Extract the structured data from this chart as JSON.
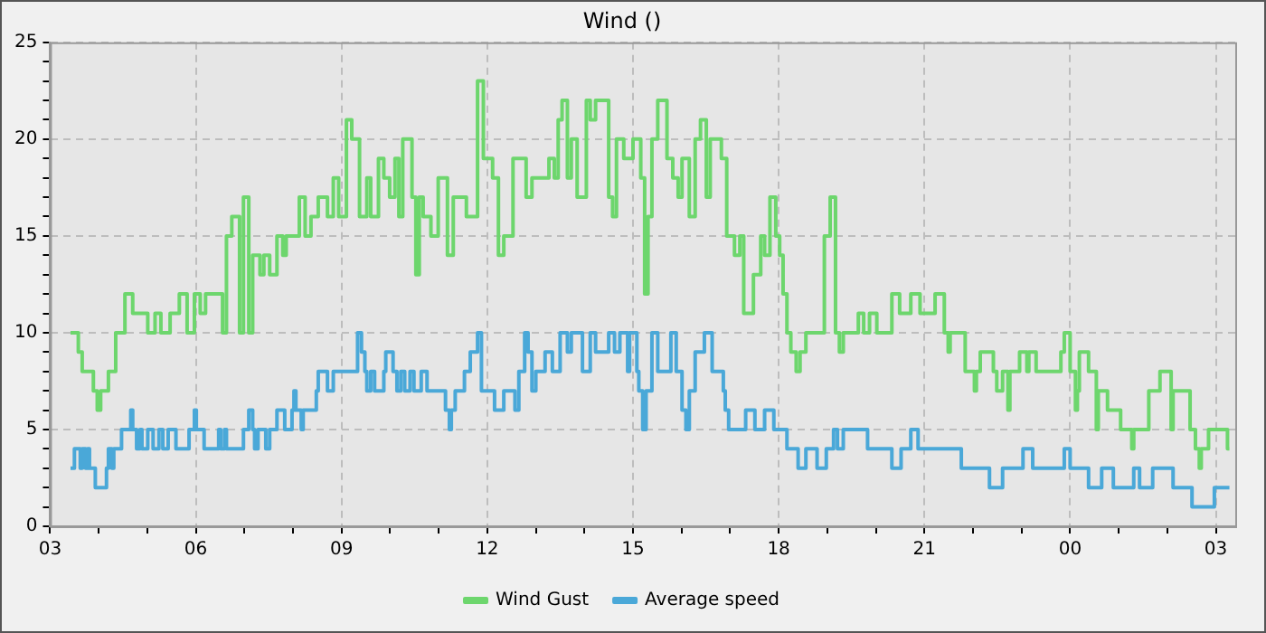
{
  "chart_data": {
    "type": "step",
    "title": "Wind ()",
    "xlim": [
      3,
      27.4
    ],
    "ylim": [
      0,
      25
    ],
    "xticks": [
      {
        "value": 3,
        "label": "03"
      },
      {
        "value": 4,
        "label": null
      },
      {
        "value": 5,
        "label": null
      },
      {
        "value": 6,
        "label": "06"
      },
      {
        "value": 7,
        "label": null
      },
      {
        "value": 8,
        "label": null
      },
      {
        "value": 9,
        "label": "09"
      },
      {
        "value": 10,
        "label": null
      },
      {
        "value": 11,
        "label": null
      },
      {
        "value": 12,
        "label": "12"
      },
      {
        "value": 13,
        "label": null
      },
      {
        "value": 14,
        "label": null
      },
      {
        "value": 15,
        "label": "15"
      },
      {
        "value": 16,
        "label": null
      },
      {
        "value": 17,
        "label": null
      },
      {
        "value": 18,
        "label": "18"
      },
      {
        "value": 19,
        "label": null
      },
      {
        "value": 20,
        "label": null
      },
      {
        "value": 21,
        "label": "21"
      },
      {
        "value": 22,
        "label": null
      },
      {
        "value": 23,
        "label": null
      },
      {
        "value": 24,
        "label": "00"
      },
      {
        "value": 25,
        "label": null
      },
      {
        "value": 26,
        "label": null
      },
      {
        "value": 27,
        "label": "03"
      }
    ],
    "yticks": [
      0,
      {
        "value": 1,
        "label": null
      },
      {
        "value": 2,
        "label": null
      },
      {
        "value": 3,
        "label": null
      },
      {
        "value": 4,
        "label": null
      },
      5,
      {
        "value": 6,
        "label": null
      },
      {
        "value": 7,
        "label": null
      },
      {
        "value": 8,
        "label": null
      },
      {
        "value": 9,
        "label": null
      },
      10,
      {
        "value": 11,
        "label": null
      },
      {
        "value": 12,
        "label": null
      },
      {
        "value": 13,
        "label": null
      },
      {
        "value": 14,
        "label": null
      },
      15,
      {
        "value": 16,
        "label": null
      },
      {
        "value": 17,
        "label": null
      },
      {
        "value": 18,
        "label": null
      },
      {
        "value": 19,
        "label": null
      },
      20,
      {
        "value": 21,
        "label": null
      },
      {
        "value": 22,
        "label": null
      },
      {
        "value": 23,
        "label": null
      },
      {
        "value": 24,
        "label": null
      },
      25
    ],
    "grid": true,
    "legend": "bottom",
    "line_style": "solid",
    "marker": "none",
    "series": [
      {
        "name": "Wind Gust",
        "color": "#6dd66d",
        "x": [
          3.42,
          3.58,
          3.66,
          3.89,
          3.97,
          4.04,
          4.2,
          4.35,
          4.54,
          4.7,
          5.01,
          5.16,
          5.28,
          5.47,
          5.66,
          5.82,
          5.97,
          6.09,
          6.2,
          6.55,
          6.63,
          6.74,
          6.9,
          6.98,
          7.09,
          7.17,
          7.32,
          7.4,
          7.52,
          7.67,
          7.79,
          7.86,
          8.13,
          8.25,
          8.37,
          8.52,
          8.71,
          8.83,
          8.94,
          9.1,
          9.21,
          9.37,
          9.52,
          9.6,
          9.76,
          9.87,
          9.99,
          10.1,
          10.18,
          10.26,
          10.45,
          10.53,
          10.6,
          10.68,
          10.84,
          10.99,
          11.18,
          11.3,
          11.57,
          11.8,
          11.92,
          12.11,
          12.23,
          12.34,
          12.53,
          12.8,
          12.92,
          13.27,
          13.38,
          13.46,
          13.54,
          13.65,
          13.73,
          13.85,
          14.04,
          14.12,
          14.23,
          14.5,
          14.58,
          14.66,
          14.81,
          15,
          15.16,
          15.24,
          15.31,
          15.39,
          15.51,
          15.7,
          15.82,
          15.93,
          16.01,
          16.16,
          16.28,
          16.39,
          16.51,
          16.59,
          16.82,
          16.93,
          17.09,
          17.2,
          17.28,
          17.48,
          17.63,
          17.71,
          17.82,
          17.94,
          18.02,
          18.09,
          18.17,
          18.25,
          18.36,
          18.44,
          18.56,
          18.94,
          19.06,
          19.17,
          19.25,
          19.33,
          19.64,
          19.75,
          19.87,
          20.02,
          20.33,
          20.49,
          20.72,
          20.91,
          21.22,
          21.41,
          21.49,
          21.53,
          21.84,
          22.03,
          22.07,
          22.15,
          22.42,
          22.49,
          22.61,
          22.72,
          22.76,
          22.96,
          23.11,
          23.15,
          23.3,
          23.81,
          23.88,
          24,
          24.11,
          24.15,
          24.19,
          24.38,
          24.54,
          24.58,
          24.77,
          25.04,
          25.27,
          25.31,
          25.62,
          25.85,
          26.08,
          26.12,
          26.47,
          26.58,
          26.66,
          26.7,
          26.85,
          27.24,
          27.28
        ],
        "values": [
          10,
          9,
          8,
          7,
          6,
          7,
          8,
          10,
          12,
          11,
          10,
          11,
          10,
          11,
          12,
          10,
          12,
          11,
          12,
          10,
          15,
          16,
          10,
          17,
          10,
          14,
          13,
          14,
          13,
          15,
          14,
          15,
          17,
          15,
          16,
          17,
          16,
          18,
          16,
          21,
          20,
          16,
          18,
          16,
          19,
          18,
          17,
          19,
          16,
          20,
          17,
          13,
          17,
          16,
          15,
          18,
          14,
          17,
          16,
          23,
          19,
          18,
          14,
          15,
          19,
          17,
          18,
          19,
          18,
          21,
          22,
          18,
          20,
          17,
          22,
          21,
          22,
          17,
          16,
          20,
          19,
          20,
          18,
          12,
          16,
          20,
          22,
          19,
          18,
          17,
          19,
          16,
          20,
          21,
          17,
          20,
          19,
          15,
          14,
          15,
          11,
          13,
          15,
          14,
          17,
          15,
          14,
          12,
          10,
          9,
          8,
          9,
          10,
          15,
          17,
          10,
          9,
          10,
          11,
          10,
          11,
          10,
          12,
          11,
          12,
          11,
          12,
          10,
          9,
          10,
          8,
          7,
          8,
          9,
          8,
          7,
          8,
          6,
          8,
          9,
          8,
          9,
          8,
          9,
          10,
          8,
          6,
          7,
          9,
          8,
          5,
          7,
          6,
          5,
          4,
          5,
          7,
          8,
          5,
          7,
          5,
          4,
          3,
          4,
          5,
          4,
          4
        ]
      },
      {
        "name": "Average speed",
        "color": "#4aa8d8",
        "x": [
          3.42,
          3.5,
          3.62,
          3.66,
          3.73,
          3.77,
          3.81,
          3.93,
          4.16,
          4.2,
          4.27,
          4.31,
          4.47,
          4.66,
          4.7,
          4.78,
          4.85,
          4.89,
          5.01,
          5.12,
          5.24,
          5.32,
          5.43,
          5.59,
          5.86,
          5.97,
          6.01,
          6.17,
          6.47,
          6.51,
          6.59,
          6.63,
          6.98,
          7.09,
          7.17,
          7.21,
          7.28,
          7.44,
          7.52,
          7.67,
          7.83,
          7.98,
          8.02,
          8.06,
          8.17,
          8.21,
          8.48,
          8.52,
          8.71,
          8.83,
          9.33,
          9.41,
          9.48,
          9.52,
          9.6,
          9.68,
          9.87,
          9.91,
          10.06,
          10.14,
          10.22,
          10.3,
          10.41,
          10.49,
          10.64,
          10.76,
          11.14,
          11.22,
          11.26,
          11.34,
          11.53,
          11.65,
          11.8,
          11.88,
          12.15,
          12.34,
          12.57,
          12.65,
          12.77,
          12.84,
          12.92,
          13,
          13.19,
          13.34,
          13.5,
          13.65,
          13.73,
          13.96,
          14.12,
          14.23,
          14.5,
          14.62,
          14.73,
          14.89,
          14.93,
          15.08,
          15.12,
          15.2,
          15.27,
          15.39,
          15.51,
          15.78,
          15.89,
          16.01,
          16.09,
          16.16,
          16.28,
          16.47,
          16.63,
          16.86,
          16.9,
          16.97,
          17.32,
          17.51,
          17.71,
          17.9,
          18.17,
          18.4,
          18.56,
          18.79,
          18.98,
          19.13,
          19.21,
          19.33,
          19.83,
          20.33,
          20.52,
          20.72,
          20.87,
          21.76,
          22.34,
          22.61,
          23.03,
          23.23,
          23.88,
          24,
          24.38,
          24.65,
          24.89,
          25.31,
          25.43,
          25.7,
          26.12,
          26.51,
          26.97,
          27.28
        ],
        "values": [
          3,
          4,
          3,
          4,
          3,
          4,
          3,
          2,
          3,
          4,
          3,
          4,
          5,
          6,
          5,
          4,
          5,
          4,
          5,
          4,
          5,
          4,
          5,
          4,
          5,
          6,
          5,
          4,
          5,
          4,
          5,
          4,
          5,
          6,
          5,
          4,
          5,
          4,
          5,
          6,
          5,
          6,
          7,
          6,
          5,
          6,
          7,
          8,
          7,
          8,
          10,
          9,
          8,
          7,
          8,
          7,
          8,
          9,
          8,
          7,
          8,
          7,
          8,
          7,
          8,
          7,
          6,
          5,
          6,
          7,
          8,
          9,
          10,
          7,
          6,
          7,
          6,
          8,
          10,
          9,
          7,
          8,
          9,
          8,
          10,
          9,
          10,
          8,
          10,
          9,
          10,
          9,
          10,
          8,
          10,
          8,
          7,
          5,
          7,
          10,
          8,
          10,
          8,
          6,
          5,
          7,
          9,
          10,
          8,
          7,
          6,
          5,
          6,
          5,
          6,
          5,
          4,
          3,
          4,
          3,
          4,
          5,
          4,
          5,
          4,
          3,
          4,
          5,
          4,
          3,
          2,
          3,
          4,
          3,
          4,
          3,
          2,
          3,
          2,
          3,
          2,
          3,
          2,
          1,
          2,
          2
        ]
      }
    ]
  }
}
